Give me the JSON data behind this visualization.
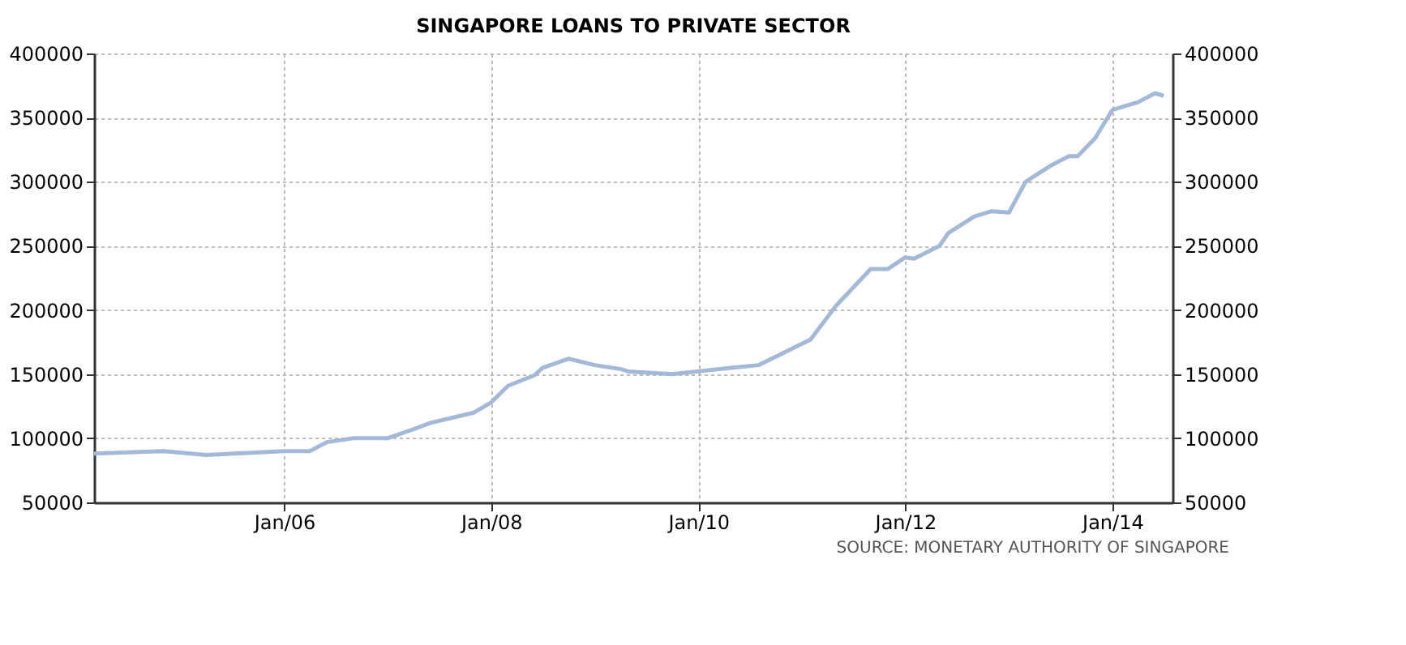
{
  "chart_data": {
    "type": "line",
    "title": "SINGAPORE LOANS TO PRIVATE SECTOR",
    "x": [
      "2004-03",
      "2004-11",
      "2005-04",
      "2006-01",
      "2006-04",
      "2006-06",
      "2006-09",
      "2007-01",
      "2007-04",
      "2007-06",
      "2007-11",
      "2008-01",
      "2008-03",
      "2008-06",
      "2008-07",
      "2008-10",
      "2009-01",
      "2009-04",
      "2009-05",
      "2009-10",
      "2010-05",
      "2010-08",
      "2011-02",
      "2011-05",
      "2011-09",
      "2011-11",
      "2012-01",
      "2012-02",
      "2012-05",
      "2012-06",
      "2012-09",
      "2012-11",
      "2013-01",
      "2013-03",
      "2013-06",
      "2013-08",
      "2013-09",
      "2013-11",
      "2014-01",
      "2014-04",
      "2014-06",
      "2014-07"
    ],
    "series": [
      {
        "color": "#a4b8d8",
        "values": [
          88000,
          90000,
          87000,
          90000,
          90000,
          97000,
          100000,
          100000,
          107000,
          112000,
          120000,
          128000,
          141000,
          149000,
          155000,
          162000,
          157000,
          154000,
          152000,
          150000,
          155000,
          157000,
          177000,
          203000,
          232000,
          232000,
          241000,
          240000,
          250000,
          260000,
          273000,
          277000,
          276000,
          300000,
          313000,
          320000,
          320000,
          334000,
          356000,
          362000,
          369000,
          367000
        ]
      }
    ],
    "xlim": [
      "2004-03",
      "2014-08"
    ],
    "xticks": [
      {
        "value": "2006-01",
        "label": "Jan/06"
      },
      {
        "value": "2008-01",
        "label": "Jan/08"
      },
      {
        "value": "2010-01",
        "label": "Jan/10"
      },
      {
        "value": "2012-01",
        "label": "Jan/12"
      },
      {
        "value": "2014-01",
        "label": "Jan/14"
      }
    ],
    "ylim": [
      50000,
      400000
    ],
    "yticks": [
      50000,
      100000,
      150000,
      200000,
      250000,
      300000,
      350000,
      400000
    ],
    "y2lim": [
      50000,
      400000
    ],
    "y2ticks": [
      50000,
      100000,
      150000,
      200000,
      250000,
      300000,
      350000,
      400000
    ],
    "grid": true,
    "line_style": "solid",
    "marker": "none",
    "annotations": [
      "SOURCE: MONETARY AUTHORITY OF SINGAPORE"
    ]
  }
}
